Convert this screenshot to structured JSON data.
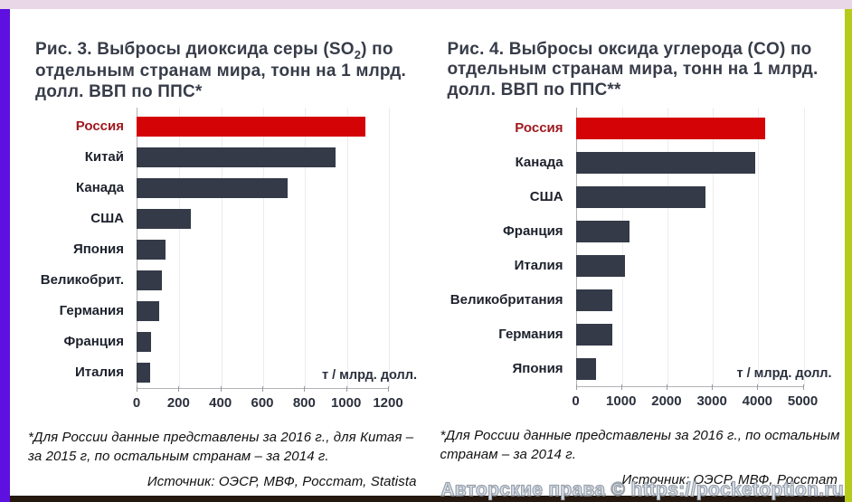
{
  "page": {
    "watermark": "Авторские права © https://pocketoption.ru"
  },
  "colors": {
    "highlight_red": "#d40305",
    "bar_dark": "#343a47",
    "russia_label_red": "#9e1a20",
    "frame_top_pink": "#e9d7e7",
    "frame_left_purple": "#5d10e0",
    "frame_right_lime": "#b5ca1a",
    "bottom_bar_dark": "#25180f"
  },
  "chart_data": [
    {
      "type": "bar",
      "orientation": "horizontal",
      "title": "Рис. 3. Выбросы диоксида серы (SO2) по отдельным странам мира, тонн на 1 млрд. долл. ВВП по ППС*",
      "title_parts": {
        "prefix": "Рис. 3. Выбросы диоксида серы (SO",
        "sub": "2",
        "suffix": ") по отдельным странам мира, тонн на 1 млрд. долл. ВВП по ППС*"
      },
      "categories": [
        "Россия",
        "Китай",
        "Канада",
        "США",
        "Япония",
        "Великобрит.",
        "Германия",
        "Франция",
        "Италия"
      ],
      "values": [
        1090,
        950,
        720,
        260,
        140,
        120,
        110,
        70,
        65
      ],
      "highlight_category": "Россия",
      "axis_label": "т / млрд. долл.",
      "x_ticks": [
        0,
        200,
        400,
        600,
        800,
        1000,
        1200
      ],
      "xlim": [
        0,
        1200
      ],
      "grid": true,
      "legend": "none",
      "footnote": "*Для России данные представлены за 2016 г., для Китая – за 2015 г, по остальным странам – за 2014 г.",
      "source": "Источник: ОЭСР, МВФ, Росстат, Statista"
    },
    {
      "type": "bar",
      "orientation": "horizontal",
      "title": "Рис. 4. Выбросы оксида углерода (CO) по отдельным странам мира, тонн на 1 млрд. долл. ВВП по ППС**",
      "title_parts": {
        "prefix": "Рис. 4. Выбросы оксида углерода (CO) по отдельным странам мира, тонн на 1 млрд. долл. ВВП по ППС**",
        "sub": "",
        "suffix": ""
      },
      "categories": [
        "Россия",
        "Канада",
        "США",
        "Франция",
        "Италия",
        "Великобритания",
        "Германия",
        "Япония"
      ],
      "values": [
        4170,
        3950,
        2850,
        1180,
        1080,
        810,
        800,
        450
      ],
      "highlight_category": "Россия",
      "axis_label": "т / млрд. долл.",
      "x_ticks": [
        0,
        1000,
        2000,
        3000,
        4000,
        5000
      ],
      "xlim": [
        0,
        5000
      ],
      "grid": true,
      "legend": "none",
      "footnote": "*Для России данные представлены за 2016 г., по остальным странам – за 2014 г.",
      "source": "Источник: ОЭСР, МВФ, Росстат"
    }
  ]
}
